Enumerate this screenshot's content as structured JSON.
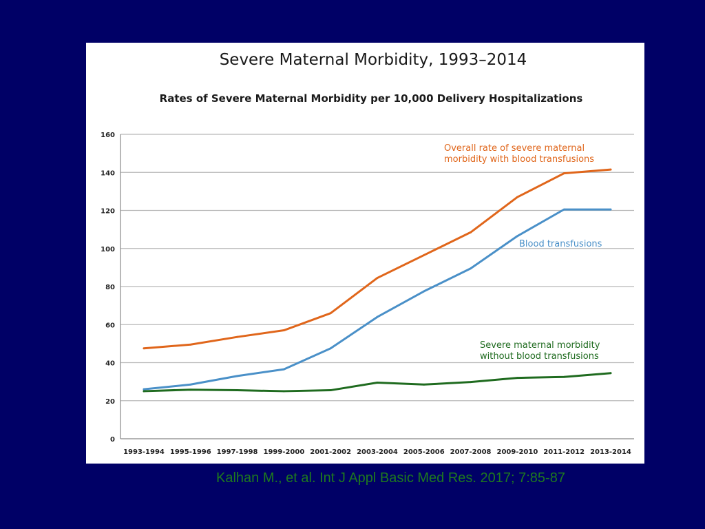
{
  "colors": {
    "background": "#000066",
    "panel": "#ffffff",
    "overall": "#e0661b",
    "blood": "#4a90c8",
    "without": "#1f6b1f",
    "citation": "#1e7a1e"
  },
  "citation": "Kalhan M., et al. Int J Appl Basic Med Res. 2017; 7:85-87",
  "chart_data": {
    "type": "line",
    "title": "Severe Maternal Morbidity, 1993–2014",
    "subtitle": "Rates of Severe Maternal Morbidity per 10,000 Delivery Hospitalizations",
    "xlabel": "",
    "ylabel": "",
    "ylim": [
      0,
      160
    ],
    "yticks": [
      0,
      20,
      40,
      60,
      80,
      100,
      120,
      140,
      160
    ],
    "grid": true,
    "categories": [
      "1993-1994",
      "1995-1996",
      "1997-1998",
      "1999-2000",
      "2001-2002",
      "2003-2004",
      "2005-2006",
      "2007-2008",
      "2009-2010",
      "2011-2012",
      "2013-2014"
    ],
    "series": [
      {
        "key": "overall",
        "name": "Overall rate of severe maternal morbidity with blood transfusions",
        "label_lines": [
          "Overall rate of severe maternal",
          "morbidity with blood transfusions"
        ],
        "values": [
          47.5,
          49.5,
          53.5,
          57,
          66,
          84.5,
          96.5,
          108.5,
          127,
          139.5,
          141.5
        ]
      },
      {
        "key": "blood",
        "name": "Blood transfusions",
        "label_lines": [
          "Blood transfusions"
        ],
        "values": [
          26,
          28.5,
          33,
          36.5,
          47.5,
          64,
          77.5,
          89.5,
          106.5,
          120.5,
          120.5
        ]
      },
      {
        "key": "without",
        "name": "Severe maternal morbidity without blood transfusions",
        "label_lines": [
          "Severe maternal morbidity",
          "without blood transfusions"
        ],
        "values": [
          25,
          25.8,
          25.5,
          25,
          25.5,
          29.5,
          28.5,
          29.8,
          32,
          32.5,
          34.5
        ]
      }
    ]
  }
}
